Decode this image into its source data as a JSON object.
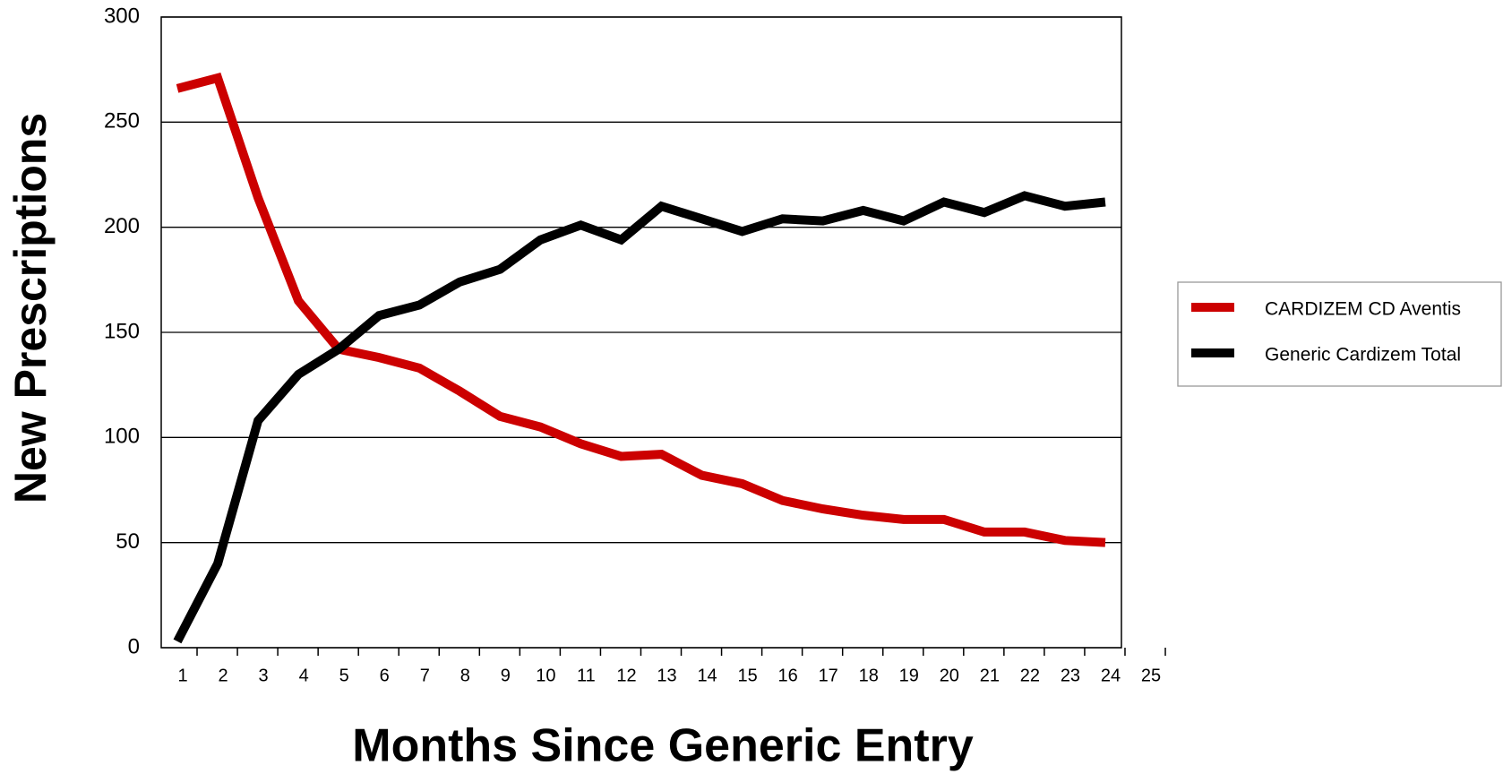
{
  "chart_data": {
    "type": "line",
    "x_label": "Months Since Generic Entry",
    "y_label": "New Prescriptions",
    "x": [
      1,
      2,
      3,
      4,
      5,
      6,
      7,
      8,
      9,
      10,
      11,
      12,
      13,
      14,
      15,
      16,
      17,
      18,
      19,
      20,
      21,
      22,
      23,
      24
    ],
    "series": [
      {
        "name": "CARDIZEM CD Aventis",
        "color": "#cc0000",
        "values": [
          266,
          271,
          214,
          165,
          142,
          138,
          133,
          122,
          110,
          105,
          97,
          91,
          92,
          82,
          78,
          70,
          66,
          63,
          61,
          61,
          55,
          55,
          51,
          50
        ]
      },
      {
        "name": "Generic Cardizem Total",
        "color": "#000000",
        "values": [
          3,
          40,
          108,
          130,
          142,
          158,
          163,
          174,
          180,
          194,
          201,
          194,
          210,
          204,
          198,
          204,
          203,
          208,
          203,
          212,
          207,
          215,
          210,
          212
        ]
      }
    ],
    "xlim": [
      0.6,
      24.4
    ],
    "xticks": [
      1,
      2,
      3,
      4,
      5,
      6,
      7,
      8,
      9,
      10,
      11,
      12,
      13,
      14,
      15,
      16,
      17,
      18,
      19,
      20,
      21,
      22,
      23,
      24,
      25
    ],
    "ylim": [
      0,
      300
    ],
    "yticks": [
      0,
      50,
      100,
      150,
      200,
      250,
      300
    ],
    "grid": true,
    "legend": "right"
  }
}
